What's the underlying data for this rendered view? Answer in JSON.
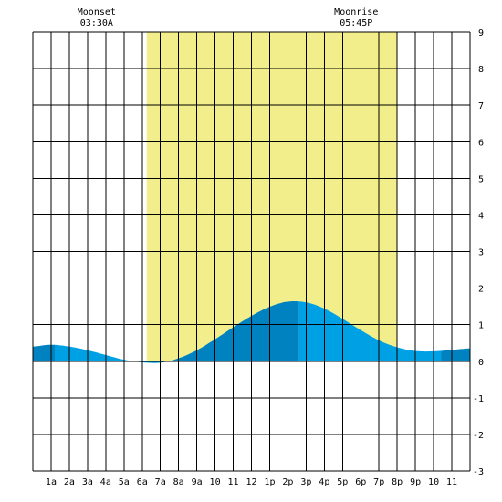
{
  "chart_data": {
    "type": "area",
    "title": "",
    "xlabel": "",
    "ylabel": "",
    "x_tick_labels": [
      "1a",
      "2a",
      "3a",
      "4a",
      "5a",
      "6a",
      "7a",
      "8a",
      "9a",
      "10",
      "11",
      "12",
      "1p",
      "2p",
      "3p",
      "4p",
      "5p",
      "6p",
      "7p",
      "8p",
      "9p",
      "10",
      "11"
    ],
    "x_range_hours": [
      0,
      24
    ],
    "ylim": [
      -3,
      9
    ],
    "y_ticks": [
      -3,
      -2,
      -1,
      0,
      1,
      2,
      3,
      4,
      5,
      6,
      7,
      8,
      9
    ],
    "grid": true,
    "daylight_hours": [
      6.25,
      20.0
    ],
    "moon_events": [
      {
        "label": "Moonset",
        "time": "03:30A",
        "hour": 3.5
      },
      {
        "label": "Moonrise",
        "time": "05:45P",
        "hour": 17.75
      }
    ],
    "tide_extremes": [
      {
        "hour": 0.0,
        "height": 0.4
      },
      {
        "hour": 1.2,
        "height": 0.45
      },
      {
        "hour": 6.9,
        "height": -0.05
      },
      {
        "hour": 14.6,
        "height": 1.65
      },
      {
        "hour": 22.4,
        "height": 0.28
      },
      {
        "hour": 24.0,
        "height": 0.35
      }
    ],
    "series": [
      {
        "values": [
          0.4,
          0.45,
          0.4,
          0.3,
          0.17,
          0.04,
          -0.03,
          -0.04,
          0.08,
          0.3,
          0.6,
          0.93,
          1.24,
          1.49,
          1.63,
          1.61,
          1.44,
          1.16,
          0.85,
          0.57,
          0.38,
          0.28,
          0.27,
          0.31,
          0.35
        ]
      }
    ],
    "colors": {
      "background": "#ffffff",
      "daylight": "#f2ee8c",
      "grid": "#000000",
      "tide_light": "#00a1e4",
      "tide_dark": "#0082c0"
    }
  }
}
